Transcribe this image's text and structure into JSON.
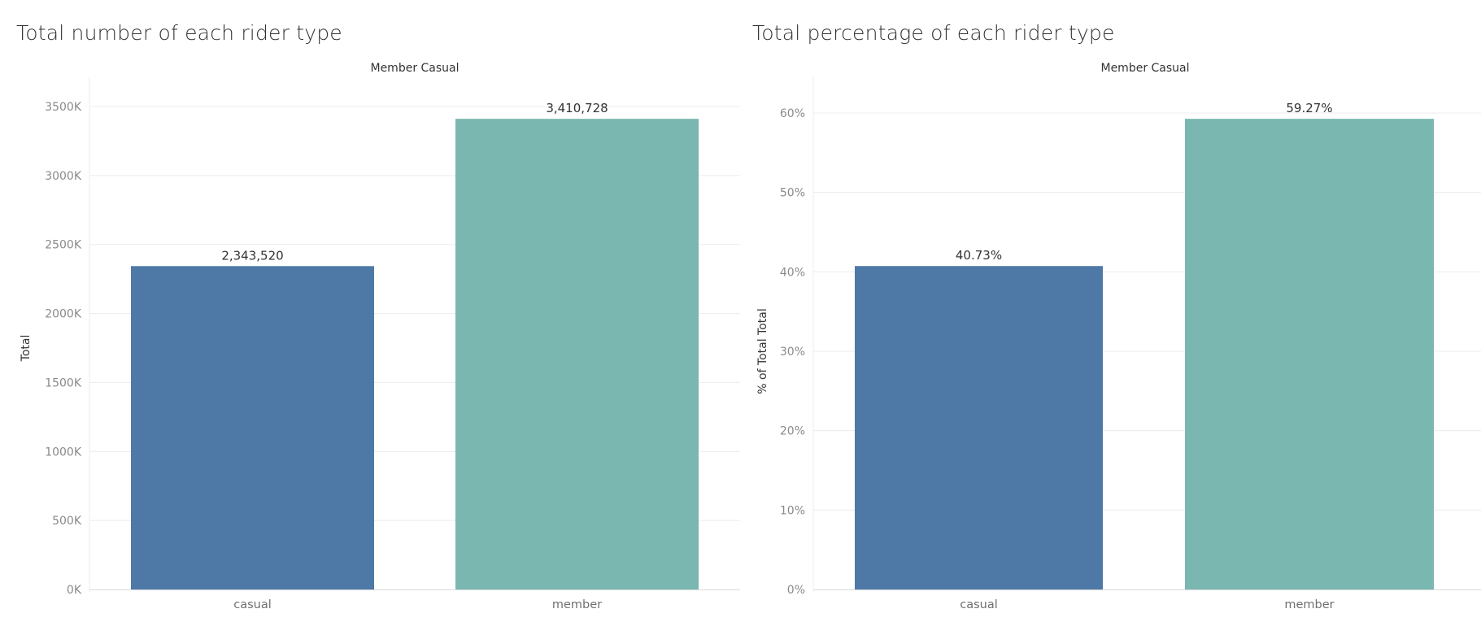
{
  "colors": {
    "casual": "#4e79a7",
    "member": "#7ab7b1",
    "grid": "#ececec",
    "axis": "#d9d9d9"
  },
  "chart_data": [
    {
      "type": "bar",
      "title": "Total number of each rider type",
      "header": "Member Casual",
      "ylabel": "Total",
      "xlabel": "",
      "categories": [
        "casual",
        "member"
      ],
      "values": [
        2343520,
        3410728
      ],
      "data_labels": [
        "2,343,520",
        "3,410,728"
      ],
      "yticks": [
        0,
        500000,
        1000000,
        1500000,
        2000000,
        2500000,
        3000000,
        3500000
      ],
      "ytick_labels": [
        "0K",
        "500K",
        "1000K",
        "1500K",
        "2000K",
        "2500K",
        "3000K",
        "3500K"
      ],
      "ylim": [
        0,
        3500000
      ],
      "grid": true
    },
    {
      "type": "bar",
      "title": "Total percentage of each rider type",
      "header": "Member Casual",
      "ylabel": "% of Total Total",
      "xlabel": "",
      "categories": [
        "casual",
        "member"
      ],
      "values": [
        40.73,
        59.27
      ],
      "data_labels": [
        "40.73%",
        "59.27%"
      ],
      "yticks": [
        0,
        10,
        20,
        30,
        40,
        50,
        60
      ],
      "ytick_labels": [
        "0%",
        "10%",
        "20%",
        "30%",
        "40%",
        "50%",
        "60%"
      ],
      "ylim": [
        0,
        60
      ],
      "grid": true
    }
  ]
}
